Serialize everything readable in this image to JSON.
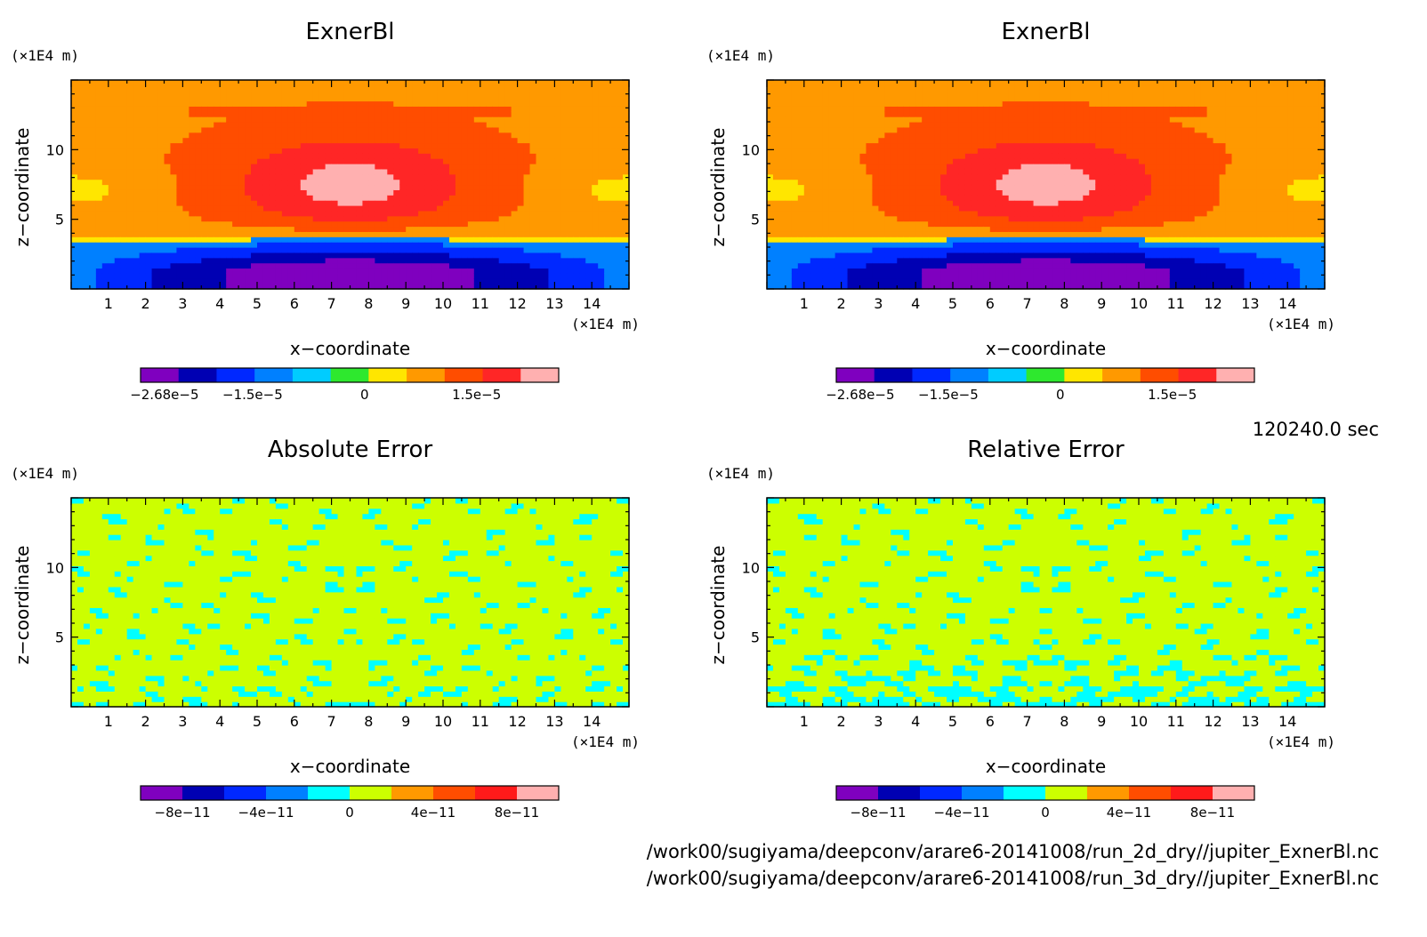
{
  "time_label": "120240.0 sec",
  "files": [
    "/work00/sugiyama/deepconv/arare6-20141008/run_2d_dry//jupiter_ExnerBl.nc",
    "/work00/sugiyama/deepconv/arare6-20141008/run_3d_dry//jupiter_ExnerBl.nc"
  ],
  "chart_data": [
    {
      "type": "heatmap",
      "title": "ExnerBl",
      "xlabel": "x−coordinate",
      "ylabel": "z−coordinate",
      "x_unit": "(×1E4 m)",
      "y_unit": "(×1E4 m)",
      "xlim": [
        0,
        15
      ],
      "ylim": [
        0,
        15
      ],
      "x_ticks": [
        "1",
        "2",
        "3",
        "4",
        "5",
        "6",
        "7",
        "8",
        "9",
        "10",
        "11",
        "12",
        "13",
        "14"
      ],
      "y_ticks": [
        "5",
        "10"
      ],
      "field": "exner",
      "colorbar": {
        "colors": [
          "#7f00bf",
          "#0000b3",
          "#0028ff",
          "#0080ff",
          "#00ccff",
          "#2ee82e",
          "#ffe600",
          "#ff9900",
          "#ff4d00",
          "#ff2626",
          "#ffb0b0"
        ],
        "labels": [
          "−2.68e−5",
          "−1.5e−5",
          "0",
          "1.5e−5"
        ],
        "label_values": [
          -2.68e-05,
          -1.5e-05,
          0,
          1.5e-05
        ],
        "range": [
          -3e-05,
          2.6e-05
        ]
      }
    },
    {
      "type": "heatmap",
      "title": "ExnerBl",
      "xlabel": "x−coordinate",
      "ylabel": "z−coordinate",
      "x_unit": "(×1E4 m)",
      "y_unit": "(×1E4 m)",
      "xlim": [
        0,
        15
      ],
      "ylim": [
        0,
        15
      ],
      "x_ticks": [
        "1",
        "2",
        "3",
        "4",
        "5",
        "6",
        "7",
        "8",
        "9",
        "10",
        "11",
        "12",
        "13",
        "14"
      ],
      "y_ticks": [
        "5",
        "10"
      ],
      "field": "exner",
      "colorbar": {
        "colors": [
          "#7f00bf",
          "#0000b3",
          "#0028ff",
          "#0080ff",
          "#00ccff",
          "#2ee82e",
          "#ffe600",
          "#ff9900",
          "#ff4d00",
          "#ff2626",
          "#ffb0b0"
        ],
        "labels": [
          "−2.68e−5",
          "−1.5e−5",
          "0",
          "1.5e−5"
        ],
        "label_values": [
          -2.68e-05,
          -1.5e-05,
          0,
          1.5e-05
        ],
        "range": [
          -3e-05,
          2.6e-05
        ]
      }
    },
    {
      "type": "heatmap",
      "title": "Absolute Error",
      "xlabel": "x−coordinate",
      "ylabel": "z−coordinate",
      "x_unit": "(×1E4 m)",
      "y_unit": "(×1E4 m)",
      "xlim": [
        0,
        15
      ],
      "ylim": [
        0,
        15
      ],
      "x_ticks": [
        "1",
        "2",
        "3",
        "4",
        "5",
        "6",
        "7",
        "8",
        "9",
        "10",
        "11",
        "12",
        "13",
        "14"
      ],
      "y_ticks": [
        "5",
        "10"
      ],
      "field": "error_abs",
      "colorbar": {
        "colors": [
          "#7f00bf",
          "#0000b3",
          "#0028ff",
          "#0080ff",
          "#00ffff",
          "#ccff00",
          "#ff9900",
          "#ff4d00",
          "#ff1a1a",
          "#ffb0b0"
        ],
        "labels": [
          "−8e−11",
          "−4e−11",
          "0",
          "4e−11",
          "8e−11"
        ],
        "label_values": [
          -8e-11,
          -4e-11,
          0,
          4e-11,
          8e-11
        ],
        "range": [
          -1e-10,
          1e-10
        ]
      }
    },
    {
      "type": "heatmap",
      "title": "Relative Error",
      "xlabel": "x−coordinate",
      "ylabel": "z−coordinate",
      "x_unit": "(×1E4 m)",
      "y_unit": "(×1E4 m)",
      "xlim": [
        0,
        15
      ],
      "ylim": [
        0,
        15
      ],
      "x_ticks": [
        "1",
        "2",
        "3",
        "4",
        "5",
        "6",
        "7",
        "8",
        "9",
        "10",
        "11",
        "12",
        "13",
        "14"
      ],
      "y_ticks": [
        "5",
        "10"
      ],
      "field": "error_rel",
      "colorbar": {
        "colors": [
          "#7f00bf",
          "#0000b3",
          "#0028ff",
          "#0080ff",
          "#00ffff",
          "#ccff00",
          "#ff9900",
          "#ff4d00",
          "#ff1a1a",
          "#ffb0b0"
        ],
        "labels": [
          "−8e−11",
          "−4e−11",
          "0",
          "4e−11",
          "8e−11"
        ],
        "label_values": [
          -8e-11,
          -4e-11,
          0,
          4e-11,
          8e-11
        ],
        "range": [
          -1e-10,
          1e-10
        ]
      }
    }
  ]
}
